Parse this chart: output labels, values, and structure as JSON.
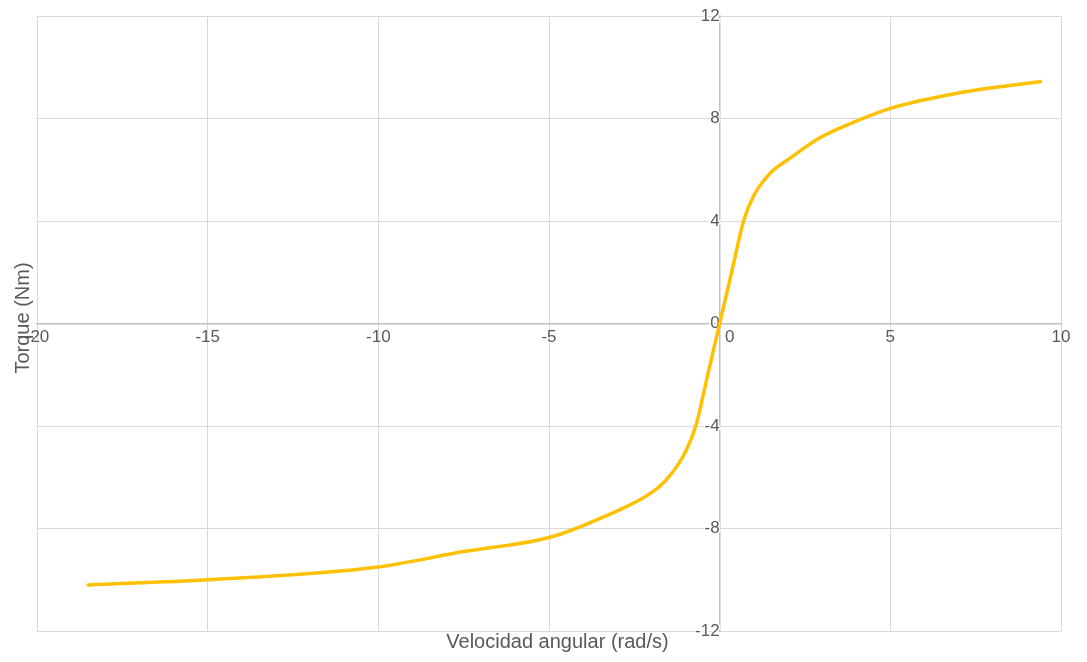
{
  "chart_data": {
    "type": "line",
    "xlabel": "Velocidad angular (rad/s)",
    "ylabel": "Torque (Nm)",
    "series": [
      {
        "color": "#ffc000",
        "x": [
          -18.5,
          -15,
          -10,
          -7.5,
          -5,
          -3.5,
          -2,
          -1.5,
          -1,
          -0.7,
          -0.35,
          0,
          0.35,
          0.7,
          1,
          1.5,
          2,
          3,
          4,
          5,
          7,
          9.4
        ],
        "values": [
          -10.2,
          -10,
          -9.5,
          -8.9,
          -8.35,
          -7.6,
          -6.6,
          -6,
          -5,
          -4,
          -2,
          0,
          2,
          4,
          5,
          5.9,
          6.4,
          7.3,
          7.9,
          8.4,
          9,
          9.45
        ]
      }
    ],
    "xlim": [
      -20,
      10
    ],
    "xticks": [
      -20,
      -15,
      -10,
      -5,
      0,
      5,
      10
    ],
    "ylim": [
      -12,
      12
    ],
    "yticks": [
      -12,
      -8,
      -4,
      0,
      4,
      8,
      12
    ],
    "grid": true,
    "legend": false,
    "marker": "none",
    "line_style": "solid"
  }
}
